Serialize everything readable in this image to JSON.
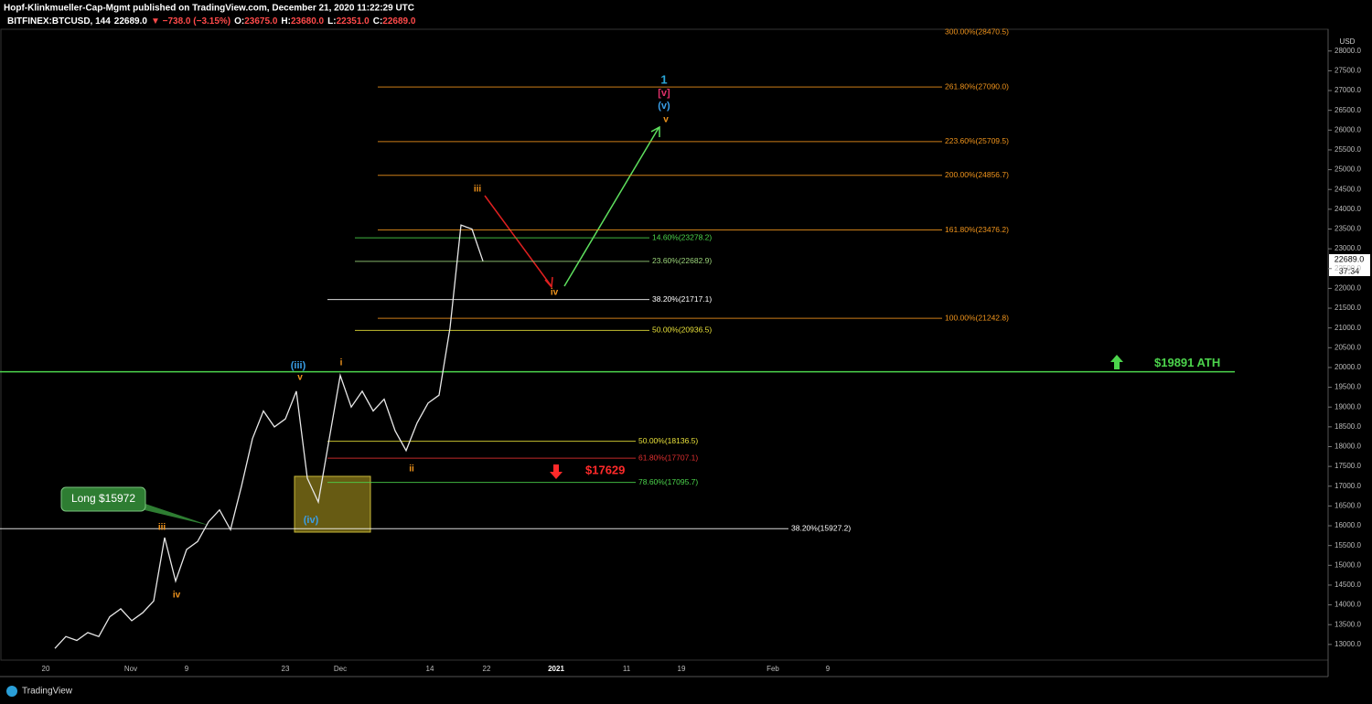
{
  "chart_data": {
    "type": "line",
    "title": "Hopf-Klinkmueller-Cap-Mgmt published on TradingView.com, December 21, 2020 11:22:29 UTC",
    "symbol": "BITFINEX:BTCUSD, 144",
    "last": "22689.0",
    "change": "▼ −738.0 (−3.15%)",
    "ohlc": [
      "O:",
      "23675.0",
      "H:",
      "23680.0",
      "L:",
      "22351.0",
      "C:",
      "22689.0"
    ],
    "currency": "USD",
    "price_tag": "22689.0",
    "countdown": "37:34",
    "brand": "TradingView",
    "color": "#e8e8e8",
    "values": [
      12900,
      13200,
      13100,
      13300,
      13200,
      13700,
      13900,
      13600,
      13800,
      14100,
      15700,
      14600,
      15400,
      15600,
      16100,
      16400,
      15900,
      17000,
      18200,
      18900,
      18500,
      18700,
      19400,
      17200,
      16600,
      18200,
      19800,
      19000,
      19400,
      18900,
      19200,
      18400,
      17900,
      18600,
      19100,
      19300,
      21000,
      23600,
      23500,
      22689
    ],
    "ylim": [
      12650,
      28480
    ],
    "yticks": [
      {
        "value": 13000,
        "label": "13000.0"
      },
      {
        "value": 13500,
        "label": "13500.0"
      },
      {
        "value": 14000,
        "label": "14000.0"
      },
      {
        "value": 14500,
        "label": "14500.0"
      },
      {
        "value": 15000,
        "label": "15000.0"
      },
      {
        "value": 15500,
        "label": "15500.0"
      },
      {
        "value": 16000,
        "label": "16000.0"
      },
      {
        "value": 16500,
        "label": "16500.0"
      },
      {
        "value": 17000,
        "label": "17000.0"
      },
      {
        "value": 17500,
        "label": "17500.0"
      },
      {
        "value": 18000,
        "label": "18000.0"
      },
      {
        "value": 18500,
        "label": "18500.0"
      },
      {
        "value": 19000,
        "label": "19000.0"
      },
      {
        "value": 19500,
        "label": "19500.0"
      },
      {
        "value": 20000,
        "label": "20000.0"
      },
      {
        "value": 20500,
        "label": "20500.0"
      },
      {
        "value": 21000,
        "label": "21000.0"
      },
      {
        "value": 21500,
        "label": "21500.0"
      },
      {
        "value": 22000,
        "label": "22000.0"
      },
      {
        "value": 22500,
        "label": "22500.0"
      },
      {
        "value": 23000,
        "label": "23000.0"
      },
      {
        "value": 23500,
        "label": "23500.0"
      },
      {
        "value": 24000,
        "label": "24000.0"
      },
      {
        "value": 24500,
        "label": "24500.0"
      },
      {
        "value": 25000,
        "label": "25000.0"
      },
      {
        "value": 25500,
        "label": "25500.0"
      },
      {
        "value": 26000,
        "label": "26000.0"
      },
      {
        "value": 26500,
        "label": "26500.0"
      },
      {
        "value": 27000,
        "label": "27000.0"
      },
      {
        "value": 27500,
        "label": "27500.0"
      },
      {
        "value": 28000,
        "label": "28000.0"
      }
    ],
    "xticks": [
      "20",
      "Nov",
      "9",
      "23",
      "Dec",
      "14",
      "22",
      "2021",
      "11",
      "19",
      "Feb",
      "9"
    ],
    "levels": [
      {
        "label": "300.00%(28470.5)",
        "value": 28470.5,
        "color": "#f0941c"
      },
      {
        "label": "261.80%(27090.0)",
        "value": 27090.0,
        "color": "#f0941c"
      },
      {
        "label": "223.60%(25709.5)",
        "value": 25709.5,
        "color": "#f0941c"
      },
      {
        "label": "200.00%(24856.7)",
        "value": 24856.7,
        "color": "#f0941c"
      },
      {
        "label": "161.80%(23476.2)",
        "value": 23476.2,
        "color": "#f0941c"
      },
      {
        "label": "100.00%(21242.8)",
        "value": 21242.8,
        "color": "#f0941c"
      },
      {
        "label": "14.60%(23278.2)",
        "value": 23278.2,
        "color": "#4cd44c"
      },
      {
        "label": "23.60%(22682.9)",
        "value": 22682.9,
        "color": "#9bd47a"
      },
      {
        "label": "38.20%(21717.1)",
        "value": 21717.1,
        "color": "#ffffff"
      },
      {
        "label": "50.00%(20936.5)",
        "value": 20936.5,
        "color": "#e8e03a"
      },
      {
        "label": "50.00%(18136.5)",
        "value": 18136.5,
        "color": "#e8e03a"
      },
      {
        "label": "61.80%(17707.1)",
        "value": 17707.1,
        "color": "#e03030"
      },
      {
        "label": "78.60%(17095.7)",
        "value": 17095.7,
        "color": "#4cd44c"
      },
      {
        "label": "38.20%(15927.2)",
        "value": 15927.2,
        "color": "#ffffff"
      }
    ],
    "wave_labels": [
      {
        "text": "1",
        "color": "#2aa7d8"
      },
      {
        "text": "[v]",
        "color": "#e0306a"
      },
      {
        "text": "(v)",
        "color": "#3a9fe8"
      },
      {
        "text": "v",
        "color": "#f0941c"
      },
      {
        "text": "iii",
        "color": "#f0941c"
      },
      {
        "text": "iv",
        "color": "#f0941c"
      },
      {
        "text": "(iii)",
        "color": "#3a9fe8"
      },
      {
        "text": "v",
        "color": "#f0941c"
      },
      {
        "text": "i",
        "color": "#f0941c"
      },
      {
        "text": "ii",
        "color": "#f0941c"
      },
      {
        "text": "(iv)",
        "color": "#3a9fe8"
      },
      {
        "text": "iii",
        "color": "#f0941c"
      },
      {
        "text": "iv",
        "color": "#f0941c"
      }
    ],
    "ath": {
      "label": "$19891 ATH",
      "value": 19891,
      "color": "#4cd44c"
    },
    "support": {
      "label": "$17629",
      "color": "#ff2a2a"
    },
    "callout": "Long $15972"
  }
}
